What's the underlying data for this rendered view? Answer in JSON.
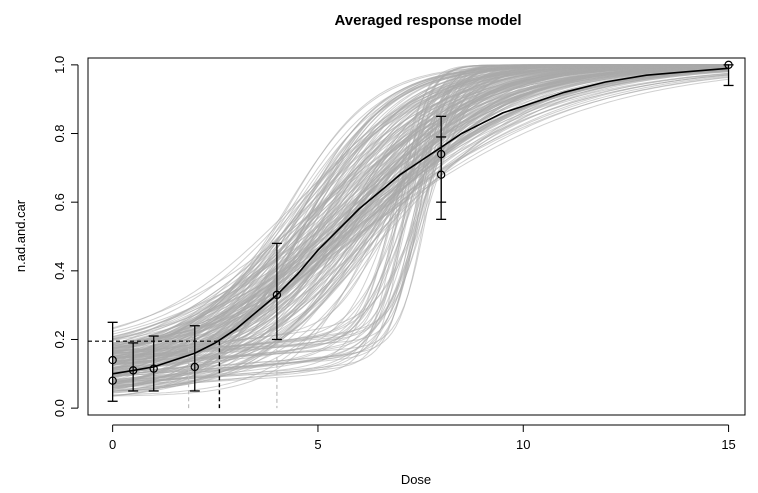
{
  "chart_data": {
    "type": "line",
    "title": "Averaged response model",
    "xlabel": "Dose",
    "ylabel": "n.ad.and.car",
    "xlim": [
      -0.6,
      15.4
    ],
    "ylim": [
      -0.02,
      1.02
    ],
    "x_ticks": [
      0,
      5,
      10,
      15
    ],
    "x_tick_labels": [
      "0",
      "5",
      "10",
      "15"
    ],
    "y_ticks": [
      0.0,
      0.2,
      0.4,
      0.6,
      0.8,
      1.0
    ],
    "y_tick_labels": [
      "0.0",
      "0.2",
      "0.4",
      "0.6",
      "0.8",
      "1.0"
    ],
    "grid": false,
    "colors": {
      "average_curve": "#000000",
      "uncertainty_curves": "#a9a9a9",
      "uncertainty_band": "#999999",
      "points": "#000000",
      "error_bars": "#000000"
    },
    "average_curve": {
      "x": [
        0,
        0.5,
        1,
        1.5,
        2,
        2.5,
        3,
        3.5,
        4,
        4.5,
        5,
        5.5,
        6,
        6.5,
        7,
        7.5,
        8,
        8.5,
        9,
        9.5,
        10,
        11,
        12,
        13,
        14,
        15
      ],
      "y": [
        0.1,
        0.11,
        0.12,
        0.14,
        0.16,
        0.19,
        0.23,
        0.28,
        0.33,
        0.39,
        0.46,
        0.52,
        0.58,
        0.63,
        0.68,
        0.72,
        0.76,
        0.8,
        0.83,
        0.86,
        0.88,
        0.92,
        0.95,
        0.97,
        0.98,
        0.99
      ]
    },
    "observed_points": {
      "x": [
        0,
        0,
        0.5,
        1,
        2,
        4,
        8,
        8,
        15
      ],
      "y": [
        0.08,
        0.14,
        0.11,
        0.115,
        0.12,
        0.33,
        0.68,
        0.74,
        1.0
      ]
    },
    "error_bars": [
      {
        "x": 0,
        "low": 0.02,
        "high": 0.25
      },
      {
        "x": 0.5,
        "low": 0.05,
        "high": 0.19
      },
      {
        "x": 1,
        "low": 0.05,
        "high": 0.21
      },
      {
        "x": 2,
        "low": 0.05,
        "high": 0.24
      },
      {
        "x": 4,
        "low": 0.2,
        "high": 0.48
      },
      {
        "x": 8,
        "low": 0.6,
        "high": 0.79
      },
      {
        "x": 8,
        "low": 0.55,
        "high": 0.85
      },
      {
        "x": 15,
        "low": 0.94,
        "high": 1.0
      }
    ],
    "reference_lines": {
      "bmr_level": 0.195,
      "bmdl_dose": 1.85,
      "bmd_dose": 2.6,
      "bmdu_dose": 4.0
    }
  }
}
